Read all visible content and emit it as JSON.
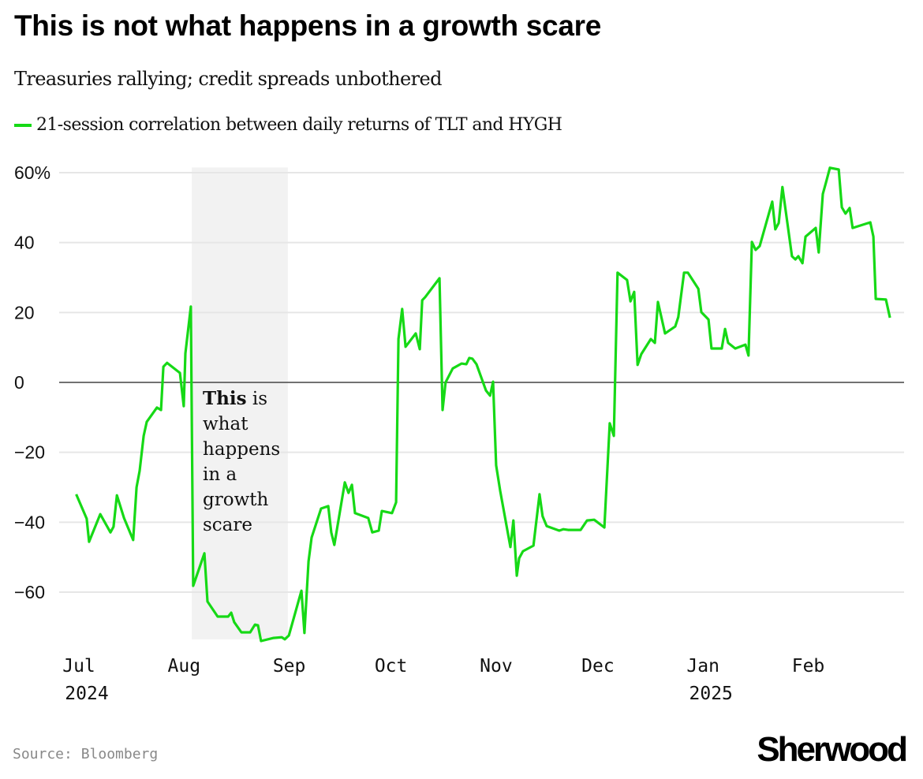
{
  "title": "This is not what happens in a growth scare",
  "subtitle": "Treasuries rallying; credit spreads unbothered",
  "source": "Source: Bloomberg",
  "logo": "Sherwood",
  "colors": {
    "line": "#16d916",
    "shade": "#f2f2f2",
    "grid": "#e6e6e6",
    "zero": "#444444"
  },
  "chart_data": {
    "type": "line",
    "title": "This is not what happens in a growth scare",
    "x_unit": "days since 2024-07-01",
    "ylabel": "",
    "ylim": [
      -73.5,
      61.5
    ],
    "xlim": [
      -1,
      240
    ],
    "grid": true,
    "legend": "top-left",
    "y_ticks": [
      {
        "value": 60,
        "label": "60%"
      },
      {
        "value": 40,
        "label": "40"
      },
      {
        "value": 20,
        "label": "20"
      },
      {
        "value": 0,
        "label": "0"
      },
      {
        "value": -20,
        "label": "−20"
      },
      {
        "value": -40,
        "label": "−40"
      },
      {
        "value": -60,
        "label": "−60"
      }
    ],
    "x_ticks": [
      {
        "value": 0,
        "label": "Jul",
        "year": "2024"
      },
      {
        "value": 31,
        "label": "Aug"
      },
      {
        "value": 62,
        "label": "Sep"
      },
      {
        "value": 92,
        "label": "Oct"
      },
      {
        "value": 123,
        "label": "Nov"
      },
      {
        "value": 153,
        "label": "Dec"
      },
      {
        "value": 184,
        "label": "Jan",
        "year": "2025"
      },
      {
        "value": 215,
        "label": "Feb"
      }
    ],
    "shaded_region": {
      "x": [
        33.3,
        61.6
      ]
    },
    "annotation": {
      "bold": "This",
      "rest": " is",
      "lines": [
        "what",
        "happens",
        "in a",
        "growth",
        "scare"
      ]
    },
    "series": [
      {
        "name": "21-session correlation between daily returns of TLT and HYGH",
        "x": [
          -0.8,
          2.3,
          3.0,
          6.3,
          9.3,
          10.2,
          11.2,
          13.3,
          16.0,
          17.0,
          17.9,
          19.1,
          20.0,
          23.0,
          24.2,
          24.9,
          26.0,
          29.8,
          30.9,
          31.4,
          33.0,
          33.7,
          37.0,
          37.9,
          40.9,
          44.0,
          44.9,
          45.8,
          47.9,
          50.5,
          51.9,
          52.8,
          53.7,
          57.4,
          59.8,
          60.7,
          61.9,
          65.6,
          66.5,
          67.7,
          68.6,
          71.4,
          73.5,
          74.4,
          75.3,
          78.4,
          79.5,
          80.5,
          81.4,
          85.3,
          86.5,
          88.4,
          89.3,
          92.3,
          93.5,
          94.2,
          95.3,
          96.3,
          99.3,
          100.5,
          101.2,
          102.1,
          106.3,
          107.2,
          108.1,
          110.2,
          112.8,
          114.2,
          115.1,
          116.0,
          117.2,
          120.0,
          121.2,
          122.1,
          123.0,
          124.2,
          127.2,
          128.1,
          129.1,
          129.8,
          130.9,
          134.0,
          135.8,
          136.7,
          137.9,
          141.6,
          142.8,
          144.2,
          147.9,
          149.8,
          151.9,
          154.9,
          156.5,
          157.7,
          158.8,
          161.6,
          162.6,
          163.7,
          164.7,
          165.8,
          168.6,
          169.8,
          170.7,
          172.8,
          175.8,
          176.7,
          178.4,
          179.5,
          182.6,
          183.5,
          185.6,
          186.5,
          189.5,
          190.5,
          191.4,
          193.5,
          196.5,
          197.4,
          198.4,
          199.5,
          200.7,
          204.4,
          205.3,
          206.3,
          207.4,
          210.2,
          211.2,
          212.1,
          213.3,
          214.2,
          217.2,
          218.1,
          219.3,
          220.2,
          221.4,
          224.0,
          224.9,
          226.0,
          227.2,
          228.1,
          233.3,
          234.2,
          234.9,
          237.9,
          239.1
        ],
        "y": [
          -32,
          -39,
          -45.6,
          -37.7,
          -42.9,
          -41.3,
          -32.3,
          -38.8,
          -45.1,
          -30,
          -25.3,
          -15.3,
          -11.3,
          -7.2,
          -7.9,
          4.5,
          5.6,
          2.7,
          -6.8,
          8.3,
          21.7,
          -58.2,
          -48.9,
          -62.7,
          -67,
          -67,
          -65.9,
          -68.6,
          -71.5,
          -71.5,
          -69.3,
          -69.5,
          -74,
          -73.1,
          -72.9,
          -73.5,
          -72.4,
          -59.6,
          -71.7,
          -51.2,
          -44.4,
          -36.1,
          -35.4,
          -42.9,
          -46.5,
          -28.6,
          -31.6,
          -29.3,
          -37.4,
          -38.8,
          -42.9,
          -42.4,
          -36.8,
          -37.4,
          -34.3,
          12.4,
          21,
          10.2,
          14,
          9.5,
          23.5,
          24.4,
          29.8,
          -7.9,
          0,
          4,
          5.4,
          5.2,
          7,
          6.8,
          5.2,
          -2.3,
          -3.8,
          0.2,
          -23.7,
          -31.1,
          -47.1,
          -39.5,
          -55.3,
          -50.3,
          -48.3,
          -46.7,
          -32,
          -38.3,
          -41.1,
          -42.4,
          -42,
          -42.2,
          -42.2,
          -39.5,
          -39.3,
          -41.5,
          -11.7,
          -15.3,
          31.4,
          29.3,
          23.2,
          25.9,
          5,
          8.1,
          12.4,
          11.3,
          23,
          14,
          16,
          18.7,
          31.4,
          31.4,
          26.8,
          20.1,
          18,
          9.7,
          9.7,
          15.3,
          11.3,
          9.7,
          10.8,
          7.7,
          40.2,
          37.9,
          39,
          51.7,
          43.8,
          45.6,
          55.9,
          36.1,
          35.2,
          36.1,
          34.1,
          41.7,
          44.2,
          37.2,
          53.9,
          57.1,
          61.4,
          60.9,
          50.1,
          48.3,
          49.9,
          44.2,
          45.8,
          41.7,
          23.9,
          23.7,
          18.5
        ]
      }
    ]
  }
}
